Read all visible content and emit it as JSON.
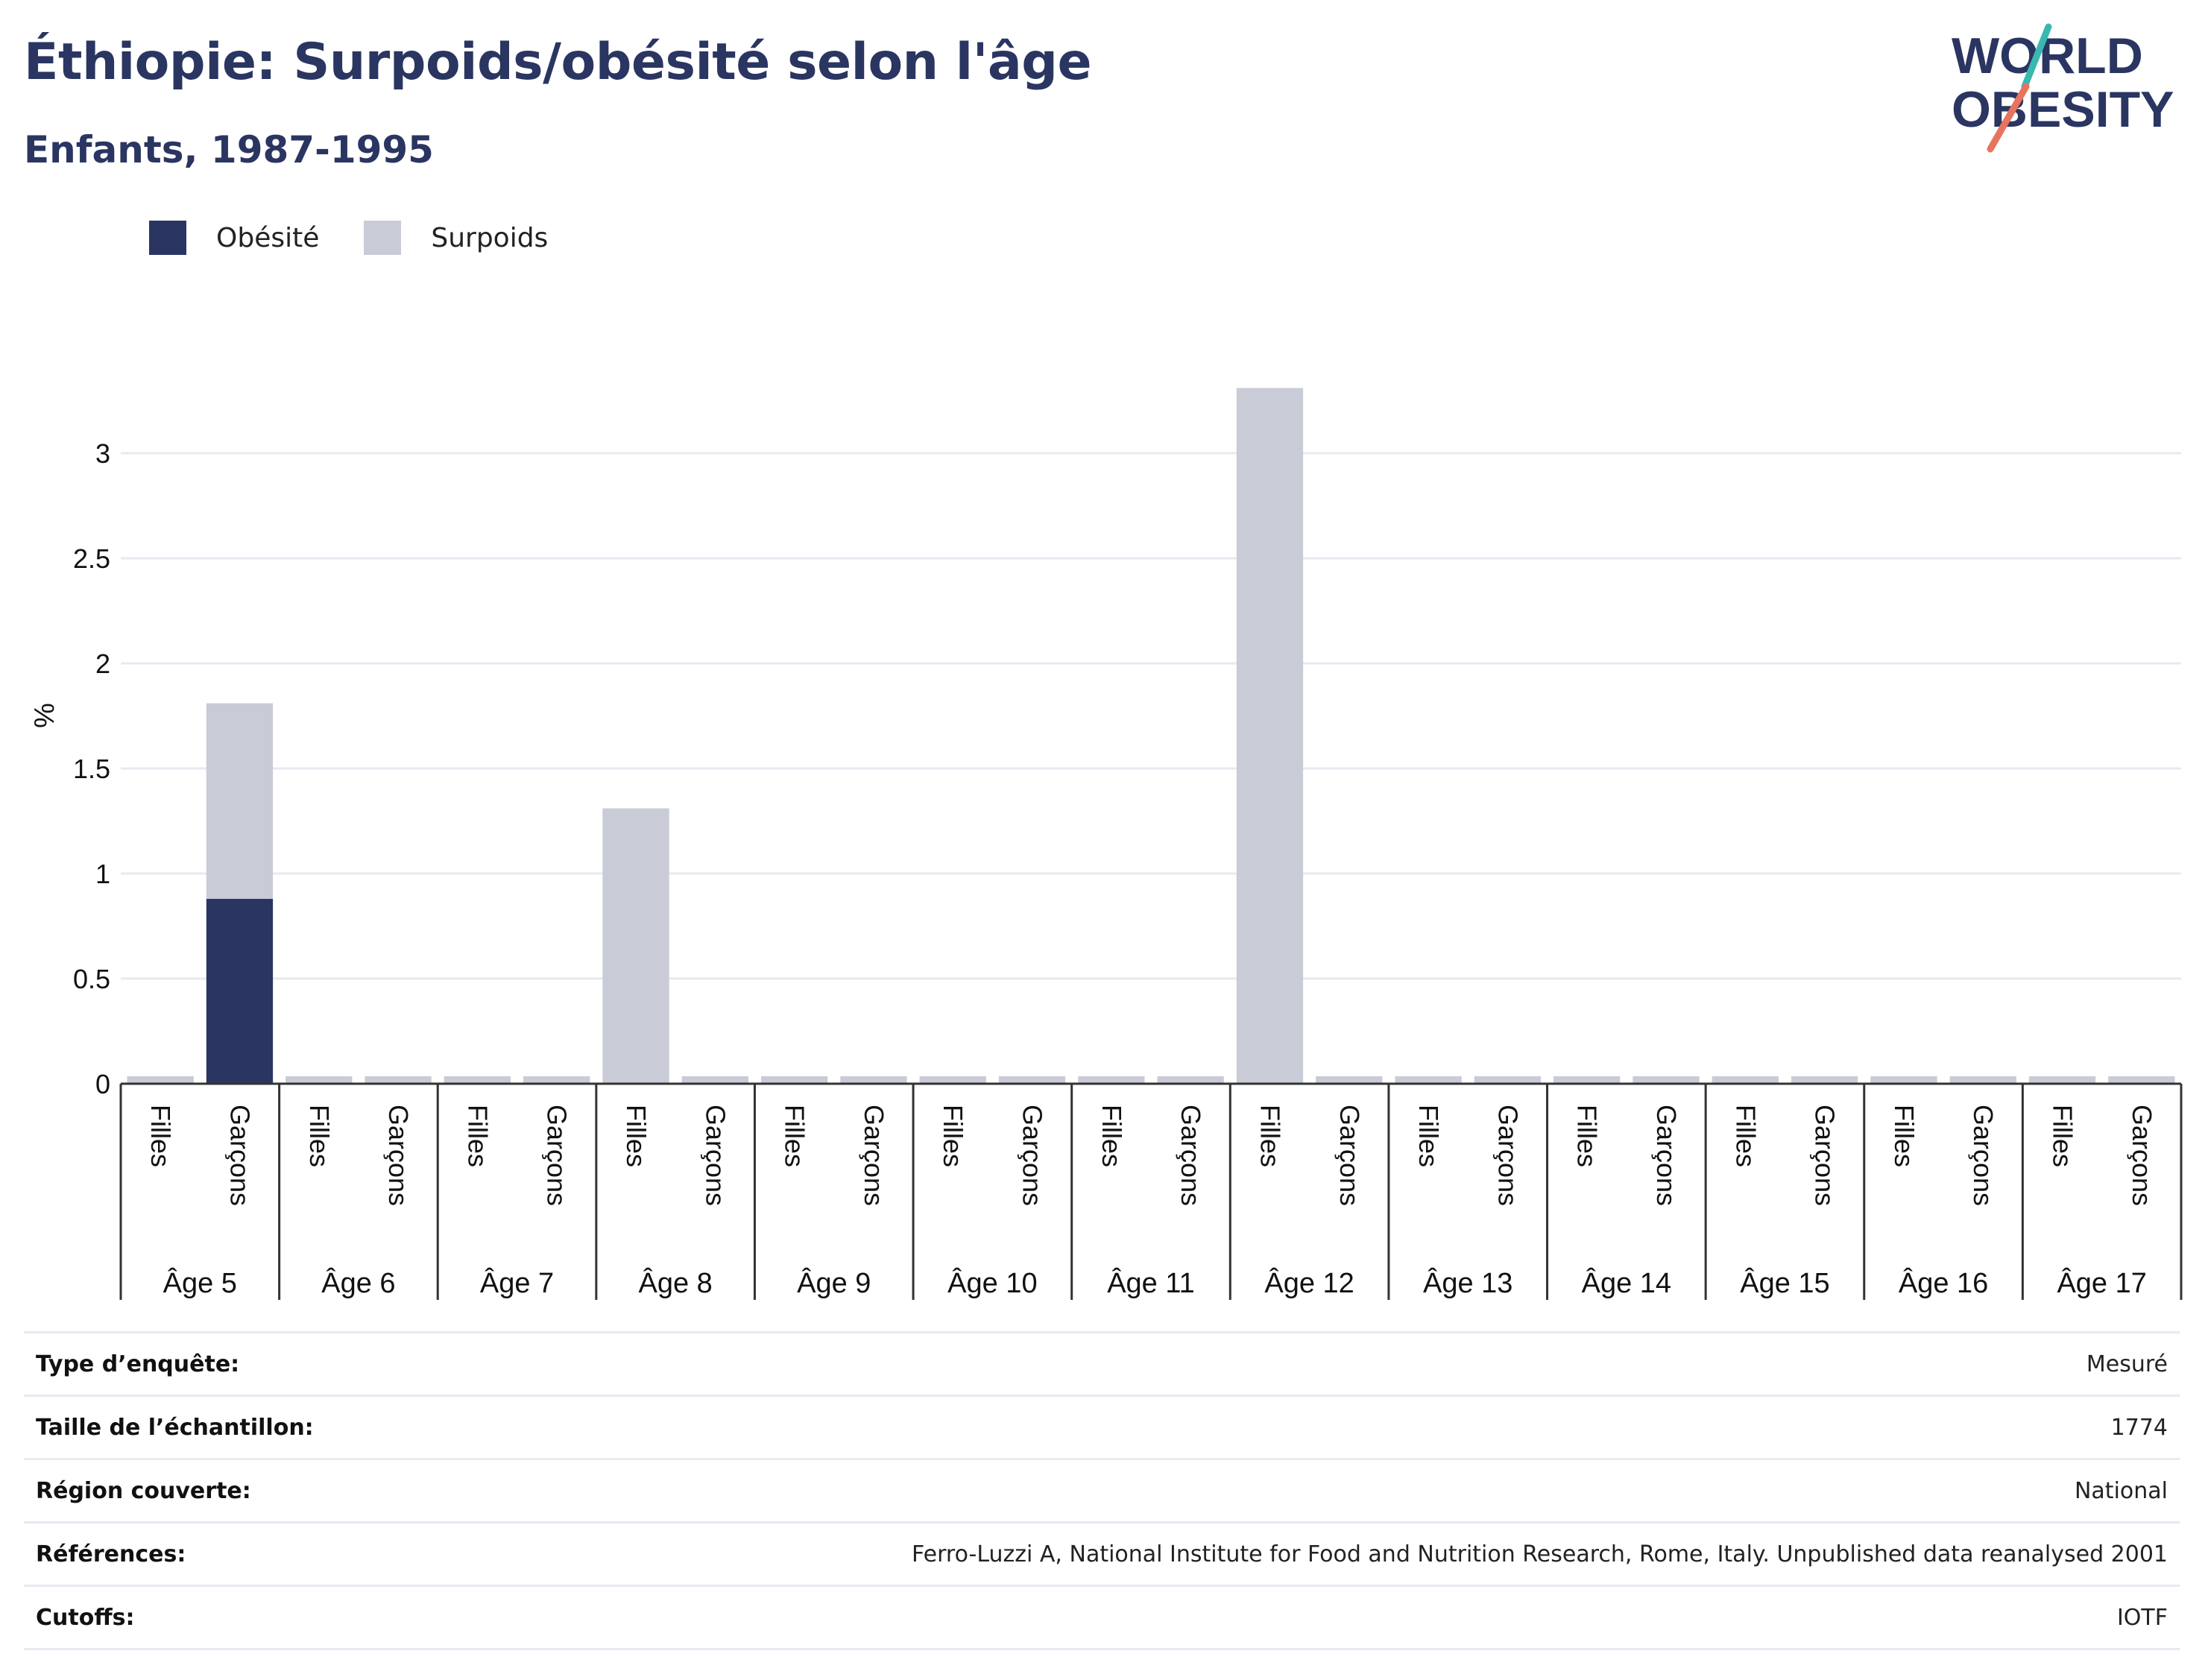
{
  "header": {
    "title": "Éthiopie: Surpoids/obésité selon l'âge",
    "subtitle": "Enfants, 1987-1995"
  },
  "logo": {
    "line1": "WORLD",
    "line2": "OBESITY"
  },
  "colors": {
    "obesite": "#2a3561",
    "surpoids": "#c9cbd6",
    "grid": "#e8eaf2",
    "logo_teal": "#3ab8b0",
    "logo_coral": "#e8735f"
  },
  "chart_data": {
    "type": "bar",
    "stacked": true,
    "ylabel": "%",
    "ylim": [
      0,
      3.5
    ],
    "yticks": [
      "0",
      "0.5",
      "1",
      "1.5",
      "2",
      "2.5",
      "3"
    ],
    "grid": true,
    "legend_position": "top-left",
    "groups": [
      "Âge 5",
      "Âge 6",
      "Âge 7",
      "Âge 8",
      "Âge 9",
      "Âge 10",
      "Âge 11",
      "Âge 12",
      "Âge 13",
      "Âge 14",
      "Âge 15",
      "Âge 16",
      "Âge 17"
    ],
    "subcategories": [
      "Filles",
      "Garçons"
    ],
    "series": [
      {
        "name": "Obésité",
        "values": [
          0,
          0.88,
          0,
          0,
          0,
          0,
          0,
          0,
          0,
          0,
          0,
          0,
          0,
          0,
          0,
          0,
          0,
          0,
          0,
          0,
          0,
          0,
          0,
          0,
          0,
          0
        ]
      },
      {
        "name": "Surpoids",
        "values": [
          0,
          0.93,
          0,
          0,
          0,
          0,
          1.31,
          0,
          0,
          0,
          0,
          0,
          0,
          0,
          3.31,
          0,
          0,
          0,
          0,
          0,
          0,
          0,
          0,
          0,
          0,
          0
        ]
      }
    ]
  },
  "info": [
    {
      "label": "Type d’enquête:",
      "value": "Mesuré"
    },
    {
      "label": "Taille de l’échantillon:",
      "value": "1774"
    },
    {
      "label": "Région couverte:",
      "value": "National"
    },
    {
      "label": "Références:",
      "value": "Ferro-Luzzi A, National Institute for Food and Nutrition Research, Rome, Italy. Unpublished data reanalysed 2001"
    },
    {
      "label": "Cutoffs:",
      "value": "IOTF"
    }
  ]
}
